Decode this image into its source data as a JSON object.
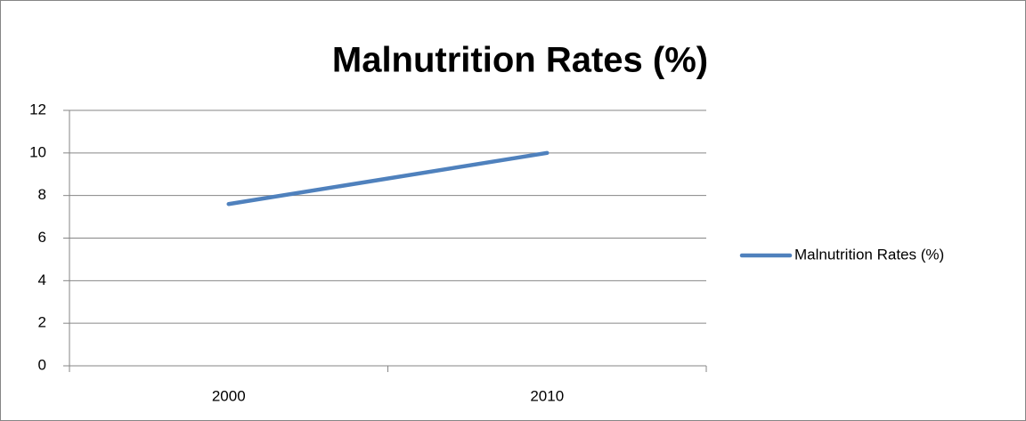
{
  "chart_data": {
    "type": "line",
    "title": "Malnutrition Rates (%)",
    "categories": [
      "2000",
      "2010"
    ],
    "series": [
      {
        "name": "Malnutrition Rates (%)",
        "color": "#4f81bd",
        "values": [
          7.6,
          10
        ]
      }
    ],
    "ylim": [
      0,
      12
    ],
    "yticks": [
      0,
      2,
      4,
      6,
      8,
      10,
      12
    ],
    "grid": true,
    "legend": "right"
  }
}
